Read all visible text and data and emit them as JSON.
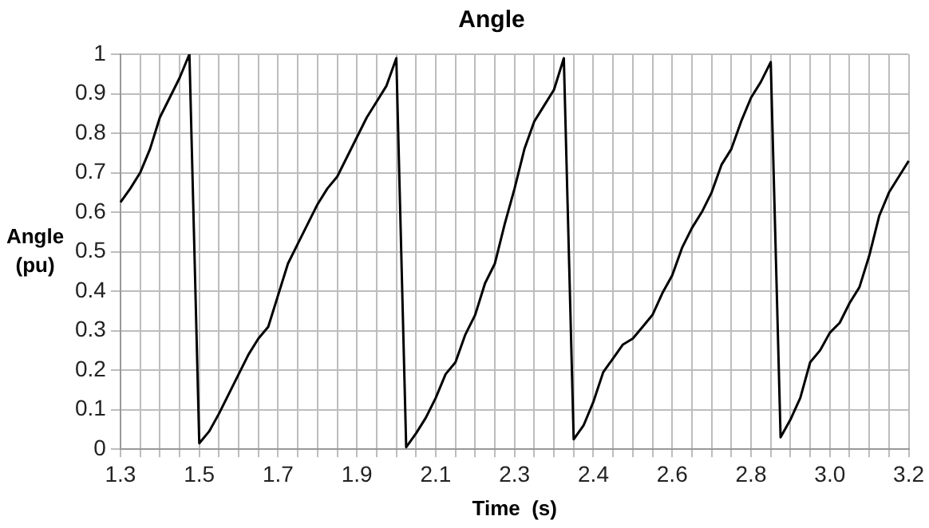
{
  "chart_data": {
    "type": "line",
    "title": "Angle",
    "xlabel": "Time  (s)",
    "ylabel": "Angle (pu)",
    "categories": [
      "1.3",
      null,
      null,
      null,
      null,
      null,
      null,
      null,
      "1.5",
      null,
      null,
      null,
      null,
      null,
      null,
      null,
      "1.7",
      null,
      null,
      null,
      null,
      null,
      null,
      null,
      "1.9",
      null,
      null,
      null,
      null,
      null,
      null,
      null,
      "2.1",
      null,
      null,
      null,
      null,
      null,
      null,
      null,
      "2.3",
      null,
      null,
      null,
      null,
      null,
      null,
      null,
      "2.4",
      null,
      null,
      null,
      null,
      null,
      null,
      null,
      "2.6",
      null,
      null,
      null,
      null,
      null,
      null,
      null,
      "2.8",
      null,
      null,
      null,
      null,
      null,
      null,
      null,
      "3.0",
      null,
      null,
      null,
      null,
      null,
      null,
      null,
      "3.2"
    ],
    "series": [
      {
        "color": "#000000",
        "values": [
          0.625,
          0.66,
          0.7,
          0.76,
          0.84,
          0.89,
          0.94,
          1.0,
          0.015,
          0.045,
          0.09,
          0.14,
          0.19,
          0.24,
          0.28,
          0.31,
          0.39,
          0.47,
          0.52,
          0.57,
          0.62,
          0.66,
          0.69,
          0.74,
          0.79,
          0.84,
          0.88,
          0.92,
          0.99,
          0.005,
          0.04,
          0.08,
          0.13,
          0.19,
          0.22,
          0.29,
          0.34,
          0.42,
          0.47,
          0.57,
          0.66,
          0.76,
          0.83,
          0.87,
          0.91,
          0.99,
          0.025,
          0.06,
          0.12,
          0.195,
          0.23,
          0.265,
          0.28,
          0.31,
          0.34,
          0.395,
          0.44,
          0.51,
          0.56,
          0.6,
          0.65,
          0.72,
          0.76,
          0.83,
          0.89,
          0.93,
          0.98,
          0.03,
          0.075,
          0.13,
          0.22,
          0.25,
          0.295,
          0.32,
          0.37,
          0.41,
          0.49,
          0.59,
          0.65,
          0.69,
          0.73
        ]
      }
    ],
    "ylim": [
      0,
      1
    ],
    "yticks": [
      0,
      0.1,
      0.2,
      0.3,
      0.4,
      0.5,
      0.6,
      0.7,
      0.8,
      0.9,
      1
    ],
    "grid": true,
    "legend": false,
    "marker": "none",
    "line_style": "solid"
  }
}
